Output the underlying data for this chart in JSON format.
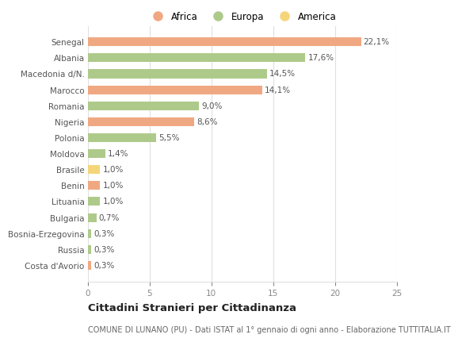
{
  "categories": [
    "Senegal",
    "Albania",
    "Macedonia d/N.",
    "Marocco",
    "Romania",
    "Nigeria",
    "Polonia",
    "Moldova",
    "Brasile",
    "Benin",
    "Lituania",
    "Bulgaria",
    "Bosnia-Erzegovina",
    "Russia",
    "Costa d'Avorio"
  ],
  "values": [
    22.1,
    17.6,
    14.5,
    14.1,
    9.0,
    8.6,
    5.5,
    1.4,
    1.0,
    1.0,
    1.0,
    0.7,
    0.3,
    0.3,
    0.3
  ],
  "labels": [
    "22,1%",
    "17,6%",
    "14,5%",
    "14,1%",
    "9,0%",
    "8,6%",
    "5,5%",
    "1,4%",
    "1,0%",
    "1,0%",
    "1,0%",
    "0,7%",
    "0,3%",
    "0,3%",
    "0,3%"
  ],
  "continents": [
    "Africa",
    "Europa",
    "Europa",
    "Africa",
    "Europa",
    "Africa",
    "Europa",
    "Europa",
    "America",
    "Africa",
    "Europa",
    "Europa",
    "Europa",
    "Europa",
    "Africa"
  ],
  "colors": {
    "Africa": "#F0A882",
    "Europa": "#AECA8A",
    "America": "#F5D57A"
  },
  "legend_labels": [
    "Africa",
    "Europa",
    "America"
  ],
  "xlim": [
    0,
    25
  ],
  "xticks": [
    0,
    5,
    10,
    15,
    20,
    25
  ],
  "title": "Cittadini Stranieri per Cittadinanza",
  "subtitle": "COMUNE DI LUNANO (PU) - Dati ISTAT al 1° gennaio di ogni anno - Elaborazione TUTTITALIA.IT",
  "background_color": "#ffffff",
  "grid_color": "#e0e0e0",
  "bar_height": 0.55,
  "label_fontsize": 7.5,
  "tick_fontsize": 7.5,
  "title_fontsize": 9.5,
  "subtitle_fontsize": 7
}
